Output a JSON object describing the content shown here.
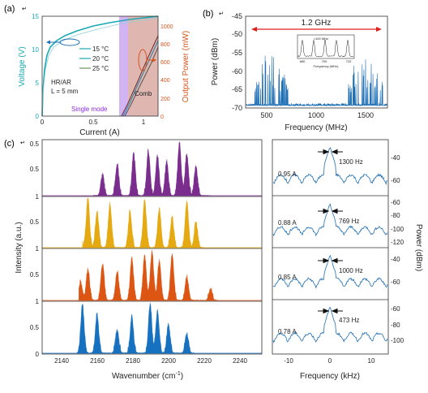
{
  "panel_a": {
    "label": "(a)",
    "xlabel": "Current (A)",
    "ylabel_left": "Voltage (V)",
    "ylabel_right": "Output Power (mW)",
    "x_ticks": [
      "0",
      "0.5",
      "1"
    ],
    "y_left_ticks": [
      "0",
      "5",
      "10",
      "15"
    ],
    "y_right_ticks": [
      "0",
      "200",
      "400",
      "600",
      "800",
      "1000"
    ],
    "legend": [
      "15 °C",
      "20 °C",
      "25 °C"
    ],
    "annotation_device": "HR/AR",
    "annotation_length": "L = 5 mm",
    "single_mode_label": "Single mode",
    "comb_label": "Comb",
    "colors": {
      "voltage": "#1aa9b5",
      "power": "#d4561c",
      "single_mode": "#c9a7ef",
      "comb": "#dba9a3"
    }
  },
  "panel_b": {
    "label": "(b)",
    "xlabel": "Frequency (MHz)",
    "ylabel": "Power (dBm)",
    "x_ticks": [
      "500",
      "1000",
      "1500"
    ],
    "y_ticks": [
      "-45",
      "-50",
      "-55",
      "-60",
      "-65",
      "-70"
    ],
    "span_label": "1.2 GHz",
    "inset_xlabel": "Frequency (MHz)",
    "inset_ticks": [
      "680",
      "700",
      "720"
    ],
    "inset_span": "≈100 MHz",
    "color": "#1f6fb4"
  },
  "panel_c": {
    "label": "(c)",
    "xlabel": "Wavenumber (cm",
    "xlabel_sup": "-1",
    "xlabel_end": ")",
    "ylabel": "Intensity (a.u.)",
    "x_ticks": [
      "2140",
      "2160",
      "2180",
      "2200",
      "2220",
      "2240"
    ],
    "y_ticks": [
      "0",
      "0.5",
      "1"
    ],
    "colors": [
      "#7b2d8e",
      "#e5a912",
      "#dc5513",
      "#1671c0"
    ]
  },
  "panel_d": {
    "xlabel": "Frequency (kHz)",
    "ylabel": "Power (dBm)",
    "x_ticks": [
      "-10",
      "0",
      "10"
    ],
    "rows": [
      {
        "current": "0.95 A",
        "linewidth": "1300 Hz",
        "ticks": [
          "-40",
          "-60"
        ]
      },
      {
        "current": "0.88 A",
        "linewidth": "769 Hz",
        "ticks": [
          "-60",
          "-80",
          "-100",
          "-120"
        ]
      },
      {
        "current": "0.85 A",
        "linewidth": "1000 Hz",
        "ticks": [
          "-40",
          "-60"
        ]
      },
      {
        "current": "0.78 A",
        "linewidth": "473 Hz",
        "ticks": [
          "-60",
          "-80",
          "-100"
        ]
      }
    ],
    "color": "#1f6fb4"
  }
}
